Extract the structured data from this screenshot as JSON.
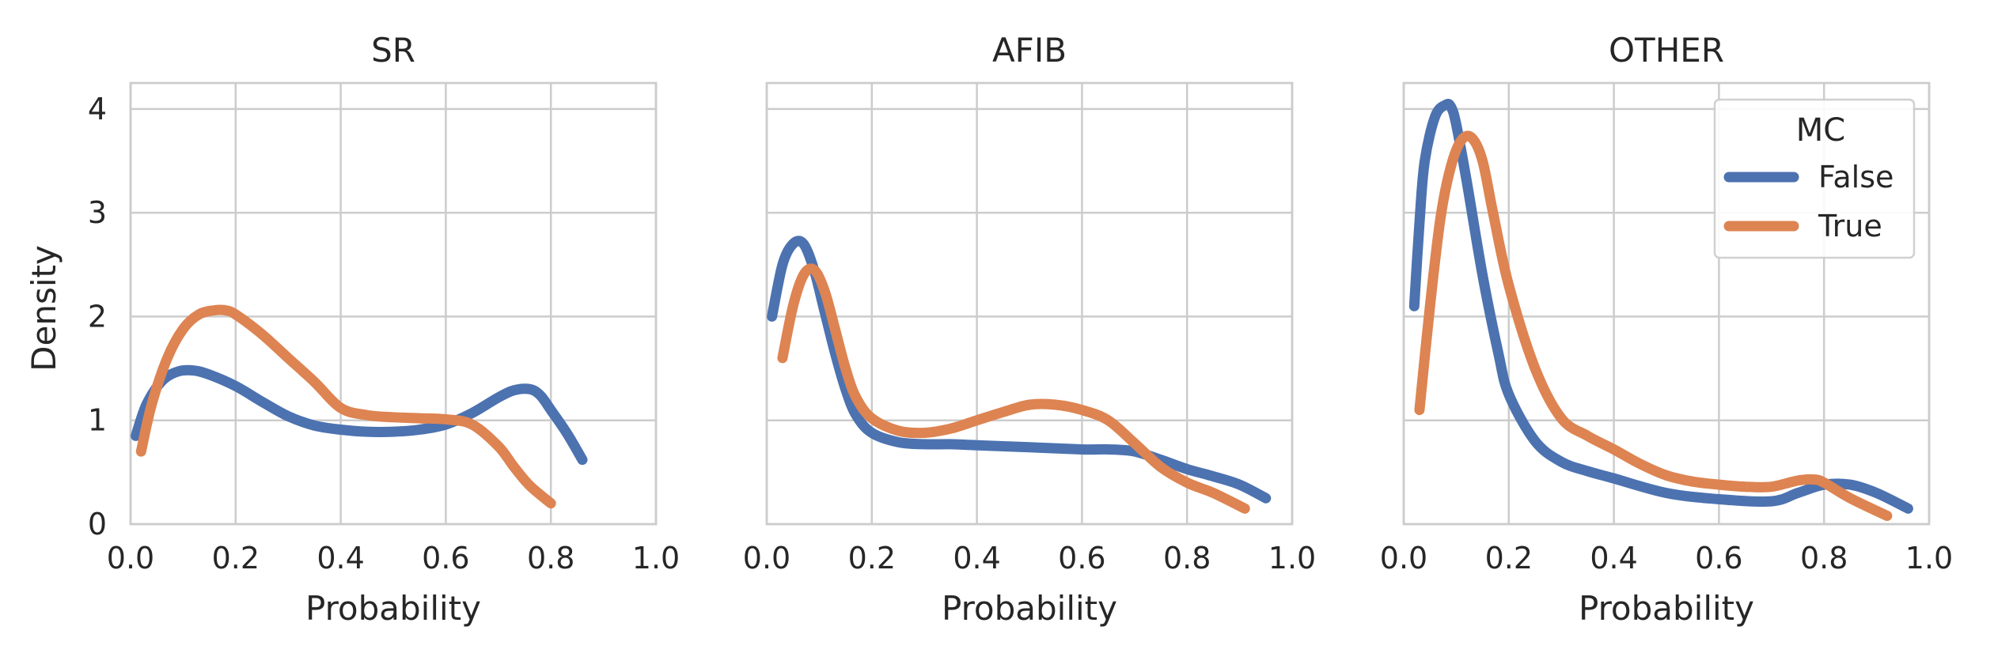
{
  "chart_data": [
    {
      "type": "line",
      "title": "SR",
      "xlabel": "Probability",
      "ylabel": "Density",
      "xlim": [
        0.0,
        1.0
      ],
      "ylim": [
        0,
        4.25
      ],
      "xticks": [
        "0.0",
        "0.2",
        "0.4",
        "0.6",
        "0.8",
        "1.0"
      ],
      "yticks": [
        "0",
        "1",
        "2",
        "3",
        "4"
      ],
      "grid": true,
      "series": [
        {
          "name": "False",
          "color": "#4c72b0",
          "x": [
            0.01,
            0.03,
            0.06,
            0.09,
            0.12,
            0.15,
            0.2,
            0.25,
            0.3,
            0.35,
            0.4,
            0.45,
            0.5,
            0.55,
            0.6,
            0.65,
            0.7,
            0.73,
            0.76,
            0.78,
            0.8,
            0.83,
            0.86
          ],
          "y": [
            0.85,
            1.15,
            1.38,
            1.47,
            1.48,
            1.44,
            1.33,
            1.18,
            1.04,
            0.95,
            0.91,
            0.89,
            0.89,
            0.91,
            0.96,
            1.07,
            1.22,
            1.29,
            1.3,
            1.24,
            1.1,
            0.88,
            0.62
          ]
        },
        {
          "name": "True",
          "color": "#dd8452",
          "x": [
            0.02,
            0.04,
            0.07,
            0.1,
            0.13,
            0.16,
            0.18,
            0.2,
            0.25,
            0.3,
            0.35,
            0.4,
            0.45,
            0.5,
            0.55,
            0.6,
            0.65,
            0.7,
            0.73,
            0.76,
            0.8
          ],
          "y": [
            0.7,
            1.15,
            1.6,
            1.88,
            2.02,
            2.06,
            2.06,
            2.02,
            1.83,
            1.6,
            1.37,
            1.12,
            1.05,
            1.03,
            1.02,
            1.01,
            0.96,
            0.75,
            0.55,
            0.37,
            0.2
          ]
        }
      ]
    },
    {
      "type": "line",
      "title": "AFIB",
      "xlabel": "Probability",
      "xlim": [
        0.0,
        1.0
      ],
      "ylim": [
        0,
        4.25
      ],
      "xticks": [
        "0.0",
        "0.2",
        "0.4",
        "0.6",
        "0.8",
        "1.0"
      ],
      "grid": true,
      "series": [
        {
          "name": "False",
          "color": "#4c72b0",
          "x": [
            0.01,
            0.03,
            0.05,
            0.07,
            0.09,
            0.11,
            0.13,
            0.15,
            0.17,
            0.2,
            0.25,
            0.3,
            0.35,
            0.4,
            0.5,
            0.6,
            0.65,
            0.7,
            0.75,
            0.8,
            0.85,
            0.9,
            0.95
          ],
          "y": [
            2.0,
            2.5,
            2.7,
            2.7,
            2.45,
            2.05,
            1.65,
            1.3,
            1.05,
            0.88,
            0.79,
            0.77,
            0.77,
            0.76,
            0.74,
            0.72,
            0.72,
            0.7,
            0.62,
            0.53,
            0.46,
            0.38,
            0.25
          ]
        },
        {
          "name": "True",
          "color": "#dd8452",
          "x": [
            0.03,
            0.05,
            0.07,
            0.09,
            0.11,
            0.13,
            0.15,
            0.17,
            0.2,
            0.25,
            0.3,
            0.35,
            0.4,
            0.45,
            0.5,
            0.55,
            0.6,
            0.65,
            0.7,
            0.75,
            0.8,
            0.85,
            0.91
          ],
          "y": [
            1.6,
            2.1,
            2.4,
            2.45,
            2.25,
            1.88,
            1.5,
            1.22,
            1.02,
            0.9,
            0.88,
            0.92,
            1.0,
            1.08,
            1.15,
            1.15,
            1.1,
            1.0,
            0.78,
            0.55,
            0.4,
            0.3,
            0.15
          ]
        }
      ]
    },
    {
      "type": "line",
      "title": "OTHER",
      "xlabel": "Probability",
      "xlim": [
        0.0,
        1.0
      ],
      "ylim": [
        0,
        4.25
      ],
      "xticks": [
        "0.0",
        "0.2",
        "0.4",
        "0.6",
        "0.8",
        "1.0"
      ],
      "grid": true,
      "legend": {
        "title": "MC",
        "position": "top-right",
        "entries": [
          "False",
          "True"
        ]
      },
      "series": [
        {
          "name": "False",
          "color": "#4c72b0",
          "x": [
            0.02,
            0.03,
            0.04,
            0.06,
            0.08,
            0.09,
            0.1,
            0.12,
            0.15,
            0.18,
            0.2,
            0.25,
            0.3,
            0.35,
            0.4,
            0.5,
            0.6,
            0.7,
            0.75,
            0.8,
            0.85,
            0.9,
            0.96
          ],
          "y": [
            2.1,
            2.9,
            3.5,
            3.93,
            4.04,
            4.02,
            3.85,
            3.3,
            2.4,
            1.65,
            1.25,
            0.8,
            0.6,
            0.51,
            0.44,
            0.3,
            0.24,
            0.22,
            0.3,
            0.38,
            0.38,
            0.3,
            0.15
          ]
        },
        {
          "name": "True",
          "color": "#dd8452",
          "x": [
            0.03,
            0.05,
            0.07,
            0.09,
            0.11,
            0.13,
            0.15,
            0.17,
            0.2,
            0.25,
            0.3,
            0.35,
            0.4,
            0.45,
            0.5,
            0.55,
            0.6,
            0.65,
            0.7,
            0.75,
            0.78,
            0.8,
            0.85,
            0.92
          ],
          "y": [
            1.1,
            2.1,
            2.95,
            3.45,
            3.7,
            3.72,
            3.5,
            3.0,
            2.3,
            1.5,
            1.02,
            0.85,
            0.72,
            0.58,
            0.47,
            0.41,
            0.38,
            0.36,
            0.36,
            0.42,
            0.43,
            0.4,
            0.25,
            0.08
          ]
        }
      ]
    }
  ]
}
